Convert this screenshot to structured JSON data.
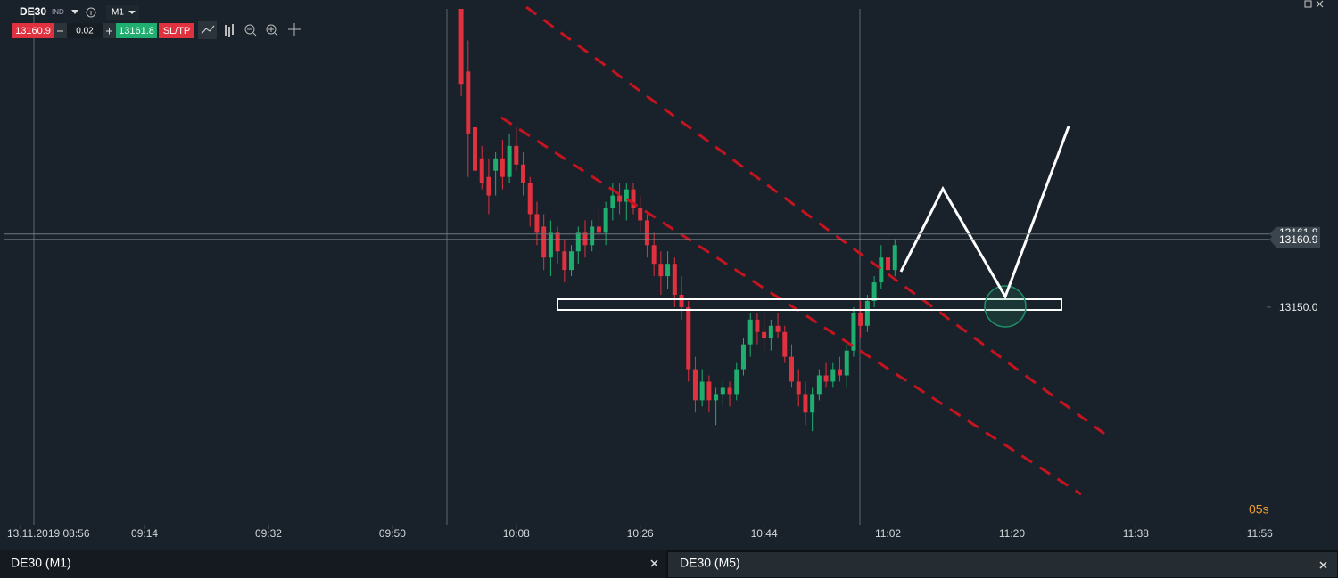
{
  "toolbar": {
    "symbol": "DE30",
    "symbol_type": "IND",
    "timeframe": "M1",
    "volume": 0.02,
    "sltp": "SL/TP"
  },
  "chart_data": {
    "type": "candlestick",
    "x": [
      "10:00",
      "10:01",
      "10:02",
      "10:03",
      "10:04",
      "10:05",
      "10:06",
      "10:07",
      "10:08",
      "10:09",
      "10:10",
      "10:11",
      "10:12",
      "10:13",
      "10:14",
      "10:15",
      "10:16",
      "10:17",
      "10:18",
      "10:19",
      "10:20",
      "10:21",
      "10:22",
      "10:23",
      "10:24",
      "10:25",
      "10:26",
      "10:27",
      "10:28",
      "10:29",
      "10:30",
      "10:31",
      "10:32",
      "10:33",
      "10:34",
      "10:35",
      "10:36",
      "10:37",
      "10:38",
      "10:39",
      "10:40",
      "10:41",
      "10:42",
      "10:43",
      "10:44",
      "10:45",
      "10:46",
      "10:47",
      "10:48",
      "10:49",
      "10:50",
      "10:51",
      "10:52",
      "10:53",
      "10:54",
      "10:55",
      "10:56",
      "10:57",
      "10:58",
      "10:59",
      "11:00",
      "11:01",
      "11:02",
      "11:03"
    ],
    "open": [
      13205,
      13188,
      13179,
      13174,
      13171,
      13172,
      13174,
      13171,
      13176,
      13173,
      13170,
      13165,
      13163,
      13158,
      13162,
      13159,
      13156,
      13159,
      13162,
      13160,
      13163,
      13162,
      13166,
      13168,
      13167,
      13169,
      13166,
      13164,
      13160,
      13157,
      13155,
      13157,
      13152,
      13150,
      13140,
      13135,
      13138,
      13135,
      13136,
      13137,
      13136,
      13140,
      13144,
      13148,
      13146,
      13145,
      13147,
      13146,
      13142,
      13138,
      13136,
      13133,
      13136,
      13139,
      13138,
      13140,
      13139,
      13143,
      13149,
      13147,
      13151,
      13154,
      13158,
      13156
    ],
    "high": [
      13205,
      13193,
      13181,
      13176,
      13174,
      13175,
      13177,
      13178,
      13179,
      13175,
      13171,
      13167,
      13165,
      13164,
      13163,
      13161,
      13160,
      13163,
      13164,
      13164,
      13166,
      13167,
      13170,
      13170,
      13170,
      13170,
      13168,
      13165,
      13162,
      13159,
      13159,
      13158,
      13155,
      13151,
      13142,
      13140,
      13139,
      13137,
      13138,
      13138,
      13141,
      13145,
      13149,
      13149,
      13149,
      13148,
      13149,
      13147,
      13144,
      13140,
      13138,
      13137,
      13140,
      13141,
      13141,
      13142,
      13144,
      13150,
      13151,
      13152,
      13155,
      13160,
      13162,
      13161
    ],
    "low": [
      13184,
      13171,
      13167,
      13169,
      13165,
      13168,
      13169,
      13170,
      13172,
      13168,
      13163,
      13160,
      13156,
      13155,
      13157,
      13154,
      13155,
      13157,
      13158,
      13159,
      13161,
      13160,
      13164,
      13165,
      13164,
      13165,
      13162,
      13158,
      13155,
      13152,
      13153,
      13150,
      13148,
      13138,
      13133,
      13134,
      13133,
      13131,
      13134,
      13134,
      13135,
      13139,
      13142,
      13144,
      13143,
      13143,
      13145,
      13141,
      13137,
      13134,
      13131,
      13130,
      13135,
      13137,
      13137,
      13138,
      13137,
      13142,
      13145,
      13146,
      13150,
      13153,
      13154,
      13155
    ],
    "close": [
      13186,
      13178,
      13172,
      13170,
      13168,
      13174,
      13171,
      13176,
      13173,
      13170,
      13165,
      13162,
      13158,
      13162,
      13159,
      13156,
      13159,
      13162,
      13160,
      13163,
      13162,
      13166,
      13168,
      13167,
      13169,
      13166,
      13164,
      13160,
      13157,
      13155,
      13157,
      13152,
      13150,
      13140,
      13135,
      13138,
      13135,
      13136,
      13137,
      13136,
      13140,
      13144,
      13148,
      13146,
      13145,
      13147,
      13146,
      13142,
      13138,
      13136,
      13133,
      13136,
      13139,
      13138,
      13140,
      13139,
      13143,
      13149,
      13147,
      13151,
      13154,
      13158,
      13156,
      13160
    ],
    "up_color": "#1fae6f",
    "down_color": "#e0313f",
    "xlim": [
      "08:53",
      "11:57"
    ],
    "xticks": [
      {
        "value": "08:56",
        "label": "13.11.2019 08:56"
      },
      "09:14",
      "09:32",
      "09:50",
      "10:08",
      "10:26",
      "10:44",
      "11:02",
      "11:20",
      "11:38",
      "11:56"
    ],
    "ylim": [
      13114.8,
      13198.1
    ],
    "yticks": [
      {
        "value": 13150,
        "label": "13150.0"
      }
    ],
    "bid": 13160.9,
    "ask": 13161.8,
    "countdown": "05s"
  },
  "tabs": [
    "DE30 (M1)",
    "DE30 (M5)"
  ]
}
